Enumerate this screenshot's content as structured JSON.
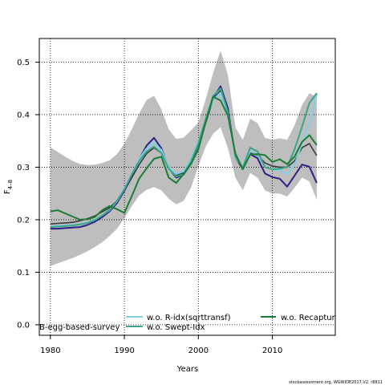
{
  "chart_data": {
    "type": "line",
    "xlabel": "Years",
    "ylabel": "F",
    "ylabel_sub": "4–8",
    "xlim": [
      1978.5,
      2018.5
    ],
    "ylim": [
      -0.02,
      0.545
    ],
    "x_ticks": [
      1980,
      1990,
      2000,
      2010
    ],
    "y_ticks": [
      0.0,
      0.1,
      0.2,
      0.3,
      0.4,
      0.5
    ],
    "y_tick_labels": [
      "0.0",
      "0.1",
      "0.2",
      "0.3",
      "0.4",
      "0.5"
    ],
    "grid": "dotted",
    "confidence_band": {
      "color": "#bebebe",
      "years": [
        1980,
        1981,
        1982,
        1983,
        1984,
        1985,
        1986,
        1987,
        1988,
        1989,
        1990,
        1991,
        1992,
        1993,
        1994,
        1995,
        1996,
        1997,
        1998,
        1999,
        2000,
        2001,
        2002,
        2003,
        2004,
        2005,
        2006,
        2007,
        2008,
        2009,
        2010,
        2011,
        2012,
        2013,
        2014,
        2015,
        2016
      ],
      "upper": [
        0.338,
        0.329,
        0.32,
        0.312,
        0.306,
        0.304,
        0.305,
        0.308,
        0.313,
        0.325,
        0.345,
        0.372,
        0.402,
        0.428,
        0.436,
        0.41,
        0.372,
        0.354,
        0.356,
        0.37,
        0.385,
        0.43,
        0.48,
        0.522,
        0.475,
        0.376,
        0.352,
        0.392,
        0.384,
        0.356,
        0.352,
        0.355,
        0.352,
        0.38,
        0.418,
        0.441,
        0.433
      ],
      "lower": [
        0.112,
        0.117,
        0.122,
        0.127,
        0.133,
        0.14,
        0.148,
        0.157,
        0.169,
        0.183,
        0.203,
        0.226,
        0.246,
        0.257,
        0.262,
        0.256,
        0.24,
        0.229,
        0.236,
        0.261,
        0.302,
        0.34,
        0.364,
        0.376,
        0.336,
        0.28,
        0.256,
        0.289,
        0.28,
        0.256,
        0.25,
        0.25,
        0.244,
        0.261,
        0.28,
        0.273,
        0.238
      ]
    },
    "x": [
      1980,
      1981,
      1982,
      1983,
      1984,
      1985,
      1986,
      1987,
      1988,
      1989,
      1990,
      1991,
      1992,
      1993,
      1994,
      1995,
      1996,
      1997,
      1998,
      1999,
      2000,
      2001,
      2002,
      2003,
      2004,
      2005,
      2006,
      2007,
      2008,
      2009,
      2010,
      2011,
      2012,
      2013,
      2014,
      2015,
      2016
    ],
    "series": [
      {
        "key": "base",
        "color": "#3a3a3a",
        "width": 1.6,
        "values": [
          0.192,
          0.193,
          0.194,
          0.195,
          0.198,
          0.202,
          0.207,
          0.215,
          0.223,
          0.236,
          0.255,
          0.28,
          0.305,
          0.326,
          0.337,
          0.327,
          0.301,
          0.285,
          0.289,
          0.313,
          0.344,
          0.385,
          0.428,
          0.446,
          0.4,
          0.322,
          0.298,
          0.328,
          0.323,
          0.308,
          0.302,
          0.3,
          0.3,
          0.312,
          0.337,
          0.345,
          0.322
        ]
      },
      {
        "key": "b-egg",
        "name": "B-egg-based-survey",
        "color": "#2e2185",
        "width": 2.0,
        "values": [
          0.183,
          0.183,
          0.184,
          0.185,
          0.186,
          0.19,
          0.196,
          0.205,
          0.216,
          0.232,
          0.255,
          0.285,
          0.315,
          0.341,
          0.356,
          0.336,
          0.298,
          0.28,
          0.286,
          0.307,
          0.336,
          0.388,
          0.432,
          0.454,
          0.412,
          0.318,
          0.297,
          0.325,
          0.317,
          0.288,
          0.281,
          0.278,
          0.263,
          0.284,
          0.305,
          0.301,
          0.27
        ]
      },
      {
        "key": "r-idx",
        "name": "w.o. R-idx(sqrttransf)",
        "color": "#7fd0ea",
        "width": 2.0,
        "values": [
          0.188,
          0.188,
          0.189,
          0.19,
          0.192,
          0.195,
          0.2,
          0.208,
          0.218,
          0.235,
          0.258,
          0.287,
          0.316,
          0.336,
          0.347,
          0.333,
          0.3,
          0.287,
          0.292,
          0.315,
          0.348,
          0.391,
          0.428,
          0.442,
          0.402,
          0.318,
          0.3,
          0.33,
          0.325,
          0.3,
          0.296,
          0.294,
          0.287,
          0.305,
          0.345,
          0.382,
          0.44
        ]
      },
      {
        "key": "swept",
        "name": "w.o. Swept-Idx",
        "color": "#3aa58a",
        "width": 2.0,
        "values": [
          0.186,
          0.187,
          0.188,
          0.189,
          0.191,
          0.194,
          0.199,
          0.208,
          0.219,
          0.236,
          0.258,
          0.286,
          0.312,
          0.33,
          0.339,
          0.327,
          0.297,
          0.282,
          0.287,
          0.311,
          0.345,
          0.392,
          0.436,
          0.45,
          0.405,
          0.32,
          0.299,
          0.337,
          0.33,
          0.3,
          0.296,
          0.297,
          0.3,
          0.334,
          0.377,
          0.422,
          0.441
        ]
      },
      {
        "key": "recapture",
        "name": "w.o. Recaptur",
        "color": "#1d7d35",
        "width": 2.0,
        "values": [
          0.216,
          0.218,
          0.212,
          0.206,
          0.2,
          0.201,
          0.205,
          0.218,
          0.226,
          0.22,
          0.213,
          0.245,
          0.278,
          0.298,
          0.316,
          0.32,
          0.28,
          0.27,
          0.287,
          0.306,
          0.334,
          0.387,
          0.434,
          0.427,
          0.398,
          0.326,
          0.296,
          0.324,
          0.325,
          0.323,
          0.31,
          0.315,
          0.306,
          0.32,
          0.348,
          0.361,
          0.342
        ]
      }
    ],
    "legend": {
      "placement": "bottom",
      "entries": [
        {
          "label": "B-egg-based-survey",
          "has_line": false
        },
        {
          "label": "w.o. R-idx(sqrttransf)",
          "color": "#7fd0ea",
          "has_line": true
        },
        {
          "label": "w.o. Swept-Idx",
          "color": "#3aa58a",
          "has_line": true
        },
        {
          "label": "w.o. Recaptur",
          "color": "#1d7d35",
          "has_line": true
        }
      ]
    }
  },
  "footer": "stockassessment.org, WGWIDE2017.V2, r8811"
}
